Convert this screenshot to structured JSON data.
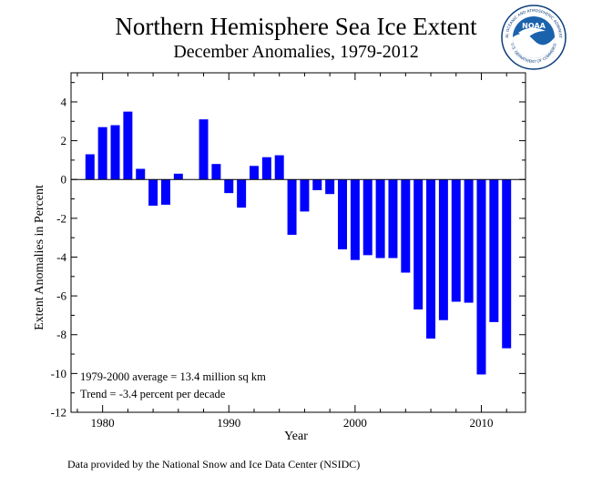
{
  "header": {
    "title": "Northern Hemisphere Sea Ice Extent",
    "subtitle": "December Anomalies, 1979-2012"
  },
  "logo": {
    "text": "NOAA",
    "ring_text_top": "NATIONAL OCEANIC AND ATMOSPHERIC ADMINISTRATION",
    "ring_text_bottom": "U.S. DEPARTMENT OF COMMERCE",
    "color_primary": "#1b62ad",
    "color_dark": "#0b3d7a"
  },
  "footer": {
    "credit": "Data provided by the National Snow and Ice Data Center (NSIDC)"
  },
  "chart_data": {
    "type": "bar",
    "title": "Northern Hemisphere Sea Ice Extent",
    "subtitle": "December Anomalies, 1979-2012",
    "xlabel": "Year",
    "ylabel": "Extent Anomalies in Percent",
    "xlim": [
      1977.5,
      2013.5
    ],
    "ylim": [
      -12,
      5.5
    ],
    "yticks": [
      4,
      2,
      0,
      -2,
      -4,
      -6,
      -8,
      -10,
      -12
    ],
    "xticks": [
      1980,
      1990,
      2000,
      2010
    ],
    "bar_color": "#0000ff",
    "x": [
      1979,
      1980,
      1981,
      1982,
      1983,
      1984,
      1985,
      1986,
      1987,
      1988,
      1989,
      1990,
      1991,
      1992,
      1993,
      1994,
      1995,
      1996,
      1997,
      1998,
      1999,
      2000,
      2001,
      2002,
      2003,
      2004,
      2005,
      2006,
      2007,
      2008,
      2009,
      2010,
      2011,
      2012
    ],
    "values": [
      1.3,
      2.7,
      2.8,
      3.5,
      0.55,
      -1.35,
      -1.3,
      0.3,
      0.0,
      3.1,
      0.8,
      -0.7,
      -1.45,
      0.7,
      1.15,
      1.25,
      -2.85,
      -1.65,
      -0.55,
      -0.75,
      -3.6,
      -4.15,
      -3.9,
      -4.05,
      -4.05,
      -4.8,
      -6.7,
      -8.2,
      -7.25,
      -6.3,
      -6.35,
      -10.05,
      -7.35,
      -8.7
    ],
    "annotations": [
      "1979-2000 average = 13.4 million sq km",
      "Trend =   -3.4 percent per decade"
    ],
    "grid": false,
    "zero_line": true
  }
}
